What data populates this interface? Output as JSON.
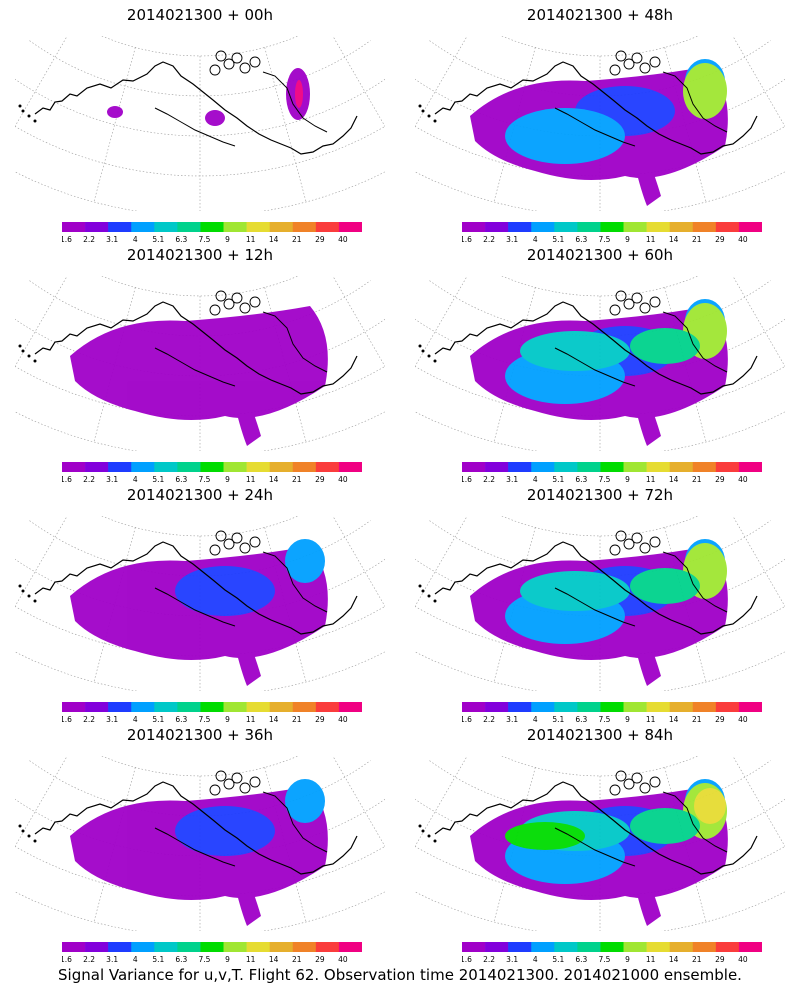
{
  "panels": [
    {
      "title": "2014021300 + 00h",
      "level": 0
    },
    {
      "title": "2014021300 + 48h",
      "level": 3
    },
    {
      "title": "2014021300 + 12h",
      "level": 1
    },
    {
      "title": "2014021300 + 60h",
      "level": 4
    },
    {
      "title": "2014021300 + 24h",
      "level": 2
    },
    {
      "title": "2014021300 + 72h",
      "level": 4
    },
    {
      "title": "2014021300 + 36h",
      "level": 2
    },
    {
      "title": "2014021300 + 84h",
      "level": 5
    }
  ],
  "colorbar": {
    "colors": [
      "#a000c8",
      "#8200dc",
      "#1e3cff",
      "#00a0ff",
      "#00c8c8",
      "#00d28c",
      "#00dc00",
      "#a0e632",
      "#e6dc32",
      "#e6af2d",
      "#f08228",
      "#fa3c3c",
      "#f00082"
    ],
    "labels": [
      "1.6",
      "2.2",
      "3.1",
      "4",
      "5.1",
      "6.3",
      "7.5",
      "9",
      "11",
      "14",
      "21",
      "29",
      "40"
    ]
  },
  "footer": "Signal Variance for u,v,T. Flight 62. Observation time 2014021300. 2014021000 ensemble."
}
